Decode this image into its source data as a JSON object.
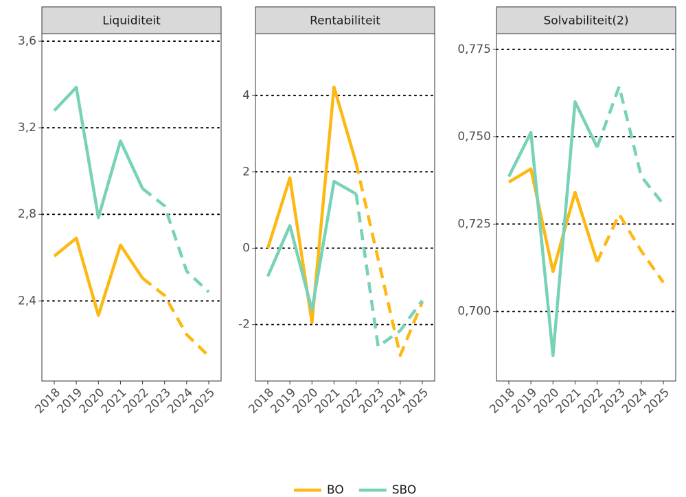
{
  "chart_data": [
    {
      "type": "line",
      "title": "Liquiditeit",
      "categories": [
        "2018",
        "2019",
        "2020",
        "2021",
        "2022",
        "2023",
        "2024",
        "2025"
      ],
      "dashed_from": "2022",
      "series": [
        {
          "name": "BO",
          "color": "#fdb813",
          "values": [
            2.607,
            2.69,
            2.333,
            2.658,
            2.505,
            2.425,
            2.244,
            2.145
          ]
        },
        {
          "name": "SBO",
          "color": "#78d2b7",
          "values": [
            3.279,
            3.387,
            2.785,
            3.139,
            2.919,
            2.839,
            2.537,
            2.441
          ]
        }
      ],
      "ylim": [
        2.03,
        3.635
      ],
      "yticks": [
        {
          "value": 2.4,
          "label": "2,4"
        },
        {
          "value": 2.8,
          "label": "2,8"
        },
        {
          "value": 3.2,
          "label": "3,2"
        },
        {
          "value": 3.6,
          "label": "3,6"
        }
      ],
      "grid": true
    },
    {
      "type": "line",
      "title": "Rentabiliteit",
      "categories": [
        "2018",
        "2019",
        "2020",
        "2021",
        "2022",
        "2023",
        "2024",
        "2025"
      ],
      "dashed_from": "2022",
      "series": [
        {
          "name": "BO",
          "color": "#fdb813",
          "values": [
            0,
            1.84,
            -1.95,
            4.22,
            2.23,
            -0.29,
            -2.81,
            -1.41
          ]
        },
        {
          "name": "SBO",
          "color": "#78d2b7",
          "values": [
            -0.74,
            0.59,
            -1.62,
            1.75,
            1.42,
            -2.58,
            -2.16,
            -1.37
          ]
        }
      ],
      "ylim": [
        -3.48,
        5.62
      ],
      "yticks": [
        -2,
        0,
        2,
        4
      ],
      "grid": true
    },
    {
      "type": "line",
      "title": "Solvabiliteit(2)",
      "categories": [
        "2018",
        "2019",
        "2020",
        "2021",
        "2022",
        "2023",
        "2024",
        "2025"
      ],
      "dashed_from": "2022",
      "series": [
        {
          "name": "BO",
          "color": "#fdb813",
          "values": [
            0.737,
            0.7408,
            0.7114,
            0.7341,
            0.7142,
            0.7278,
            0.7173,
            0.7083
          ]
        },
        {
          "name": "SBO",
          "color": "#78d2b7",
          "values": [
            0.7386,
            0.7512,
            0.6874,
            0.76,
            0.747,
            0.7644,
            0.7386,
            0.7307
          ]
        }
      ],
      "ylim": [
        0.6801,
        0.7795
      ],
      "yticks": [
        {
          "value": 0.7,
          "label": "0,700"
        },
        {
          "value": 0.725,
          "label": "0,725"
        },
        {
          "value": 0.75,
          "label": "0,750"
        },
        {
          "value": 0.775,
          "label": "0,775"
        }
      ],
      "grid": true
    }
  ]
}
